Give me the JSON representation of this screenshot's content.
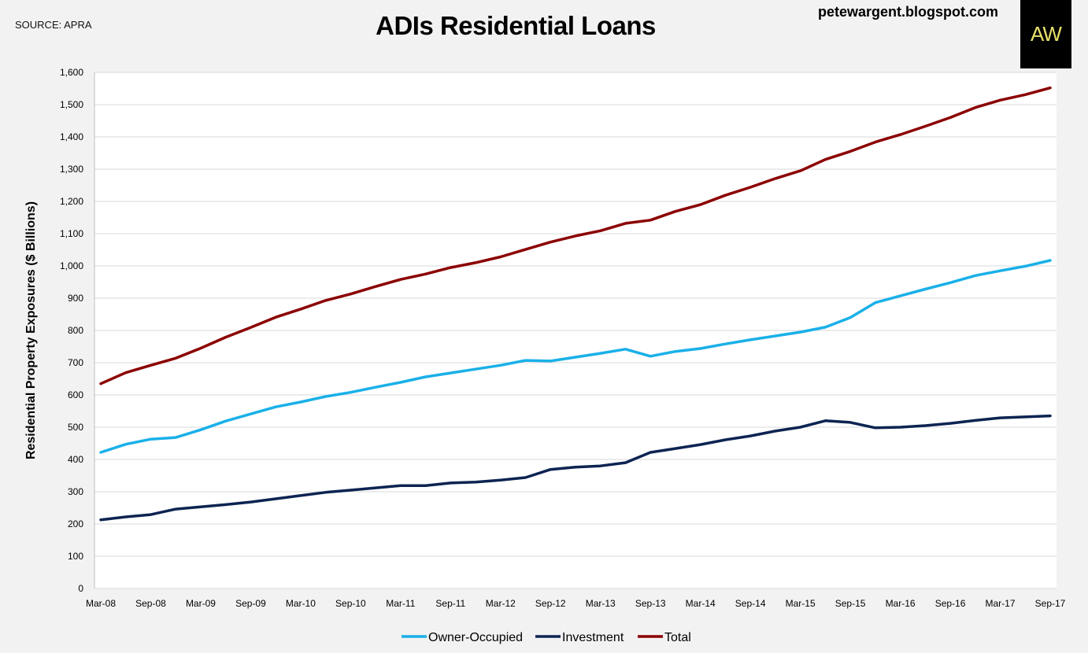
{
  "header": {
    "source": "SOURCE: APRA",
    "title": "ADIs Residential Loans",
    "blog": "petewargent.blogspot.com",
    "logo_text": "AW"
  },
  "colors": {
    "owner_occupied": "#1ab0e8",
    "investment": "#0d2452",
    "total": "#8b0000",
    "grid": "#d9d9d9",
    "logo_text": "#e8e06a"
  },
  "chart_data": {
    "type": "line",
    "title": "ADIs Residential Loans",
    "xlabel": "",
    "ylabel": "Residential Property Exposures ($ Billions)",
    "ylim": [
      0,
      1600
    ],
    "yticks": [
      0,
      100,
      200,
      300,
      400,
      500,
      600,
      700,
      800,
      900,
      1000,
      1100,
      1200,
      1300,
      1400,
      1500,
      1600
    ],
    "ytick_labels": [
      "0",
      "100",
      "200",
      "300",
      "400",
      "500",
      "600",
      "700",
      "800",
      "900",
      "1,000",
      "1,100",
      "1,200",
      "1,300",
      "1,400",
      "1,500",
      "1,600"
    ],
    "x": [
      "Mar-08",
      "Jun-08",
      "Sep-08",
      "Dec-08",
      "Mar-09",
      "Jun-09",
      "Sep-09",
      "Dec-09",
      "Mar-10",
      "Jun-10",
      "Sep-10",
      "Dec-10",
      "Mar-11",
      "Jun-11",
      "Sep-11",
      "Dec-11",
      "Mar-12",
      "Jun-12",
      "Sep-12",
      "Dec-12",
      "Mar-13",
      "Jun-13",
      "Sep-13",
      "Dec-13",
      "Mar-14",
      "Jun-14",
      "Sep-14",
      "Dec-14",
      "Mar-15",
      "Jun-15",
      "Sep-15",
      "Dec-15",
      "Mar-16",
      "Jun-16",
      "Sep-16",
      "Dec-16",
      "Mar-17",
      "Jun-17",
      "Sep-17"
    ],
    "xtick_labels": [
      "Mar-08",
      "Sep-08",
      "Mar-09",
      "Sep-09",
      "Mar-10",
      "Sep-10",
      "Mar-11",
      "Sep-11",
      "Mar-12",
      "Sep-12",
      "Mar-13",
      "Sep-13",
      "Mar-14",
      "Sep-14",
      "Mar-15",
      "Sep-15",
      "Mar-16",
      "Sep-16",
      "Mar-17",
      "Sep-17"
    ],
    "grid": true,
    "legend_position": "bottom",
    "series": [
      {
        "name": "Owner-Occupied",
        "color": "#1ab0e8",
        "values": [
          422,
          447,
          463,
          468,
          492,
          519,
          541,
          563,
          578,
          595,
          608,
          624,
          639,
          656,
          668,
          680,
          692,
          707,
          705,
          717,
          729,
          742,
          720,
          735,
          744,
          758,
          771,
          783,
          795,
          810,
          840,
          886,
          907,
          928,
          948,
          970,
          985,
          999,
          1017
        ]
      },
      {
        "name": "Investment",
        "color": "#0d2452",
        "values": [
          213,
          222,
          229,
          246,
          253,
          260,
          268,
          278,
          288,
          298,
          305,
          312,
          319,
          319,
          327,
          330,
          336,
          344,
          369,
          376,
          380,
          390,
          422,
          434,
          446,
          461,
          473,
          488,
          500,
          520,
          515,
          498,
          500,
          505,
          512,
          521,
          529,
          532,
          535
        ]
      },
      {
        "name": "Total",
        "color": "#8b0000",
        "values": [
          635,
          669,
          692,
          714,
          745,
          779,
          809,
          841,
          866,
          893,
          913,
          936,
          958,
          975,
          995,
          1010,
          1028,
          1051,
          1074,
          1093,
          1109,
          1132,
          1142,
          1169,
          1190,
          1219,
          1244,
          1271,
          1295,
          1330,
          1355,
          1384,
          1407,
          1433,
          1460,
          1491,
          1514,
          1531,
          1552
        ]
      }
    ]
  }
}
